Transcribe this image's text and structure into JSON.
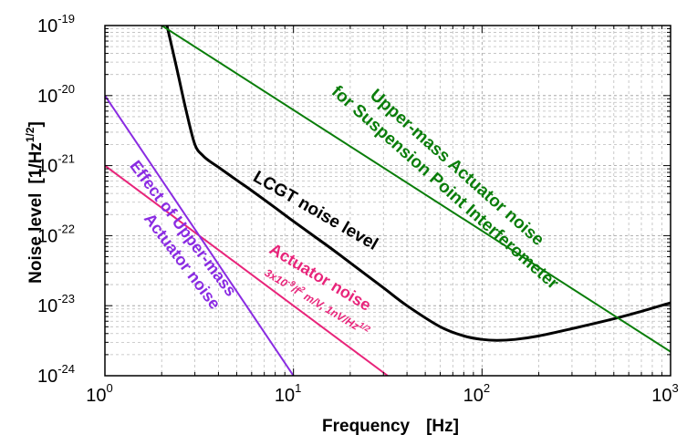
{
  "chart_data": {
    "type": "line",
    "title": "",
    "xlabel": "Frequency",
    "xunit": "[Hz]",
    "ylabel": "Noise level",
    "yunit_prefix": "[1/Hz",
    "yunit_exp": "1/2",
    "yunit_suffix": "]",
    "xscale": "log",
    "yscale": "log",
    "xlim": [
      1,
      1000
    ],
    "ylim": [
      1e-24,
      1e-19
    ],
    "grid": true,
    "x_ticks": [
      {
        "base": "10",
        "exp": "0",
        "value": 1
      },
      {
        "base": "10",
        "exp": "1",
        "value": 10
      },
      {
        "base": "10",
        "exp": "2",
        "value": 100
      },
      {
        "base": "10",
        "exp": "3",
        "value": 1000
      }
    ],
    "y_ticks": [
      {
        "base": "10",
        "exp": "-24",
        "value": 1e-24
      },
      {
        "base": "10",
        "exp": "-23",
        "value": 1e-23
      },
      {
        "base": "10",
        "exp": "-22",
        "value": 1e-22
      },
      {
        "base": "10",
        "exp": "-21",
        "value": 1e-21
      },
      {
        "base": "10",
        "exp": "-20",
        "value": 1e-20
      },
      {
        "base": "10",
        "exp": "-19",
        "value": 1e-19
      }
    ],
    "series": [
      {
        "key": "lcgt",
        "color": "#000000",
        "x": [
          2.1,
          2.4,
          2.7,
          3.0,
          3.3,
          3.6,
          4,
          5,
          6,
          8,
          10,
          15,
          20,
          30,
          40,
          60,
          80,
          100,
          120,
          150,
          200,
          300,
          500,
          700,
          1000
        ],
        "y": [
          1.2e-19,
          2.5e-20,
          6e-21,
          2e-21,
          1.4e-21,
          1.15e-21,
          9.5e-22,
          6.2e-22,
          4.4e-22,
          2.5e-22,
          1.6e-22,
          7.3e-23,
          4.1e-23,
          1.8e-23,
          1e-23,
          5e-24,
          3.7e-24,
          3.3e-24,
          3.2e-24,
          3.3e-24,
          3.7e-24,
          4.7e-24,
          6.5e-24,
          8.3e-24,
          1.1e-23
        ]
      },
      {
        "key": "upper-mass-spi",
        "color": "#0a7d0a",
        "x": [
          1.8,
          1000
        ],
        "y": [
          1.2e-19,
          2.2e-24
        ]
      },
      {
        "key": "actuator",
        "color": "#e8247a",
        "x": [
          1,
          31.6
        ],
        "y": [
          1e-21,
          1e-24
        ]
      },
      {
        "key": "effect-upper-mass",
        "color": "#8a2be2",
        "x": [
          1,
          10
        ],
        "y": [
          1e-20,
          1e-24
        ]
      }
    ],
    "annotations": [
      {
        "key": "spi-line1",
        "text": "Upper-mass Actuator noise",
        "color": "#0a7d0a"
      },
      {
        "key": "spi-line2",
        "text": "for Suspension Point Interferometer",
        "color": "#0a7d0a"
      },
      {
        "key": "lcgt",
        "text": "LCGT noise level",
        "color": "#000000"
      },
      {
        "key": "act-title",
        "text": "Actuator noise",
        "color": "#e8247a"
      },
      {
        "key": "act-formula",
        "parts": [
          "3x10",
          "-9",
          "/f",
          "2",
          " m/V, 1nV/Hz",
          "1/2"
        ],
        "color": "#e8247a"
      },
      {
        "key": "eff-line1",
        "text": "Effect of Upper-mass",
        "color": "#8a2be2"
      },
      {
        "key": "eff-line2",
        "text": "Actuator noise",
        "color": "#8a2be2"
      }
    ]
  }
}
